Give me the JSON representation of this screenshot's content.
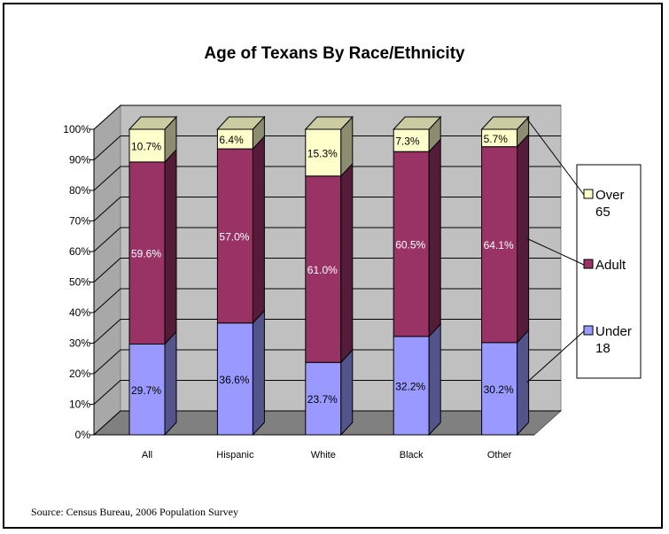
{
  "chart_data": {
    "type": "bar",
    "stacked": true,
    "percent_stacked": true,
    "title": "Age of Texans By Race/Ethnicity",
    "xlabel": "",
    "ylabel": "",
    "ylim": [
      0,
      100
    ],
    "y_ticks": [
      "0%",
      "10%",
      "20%",
      "30%",
      "40%",
      "50%",
      "60%",
      "70%",
      "80%",
      "90%",
      "100%"
    ],
    "categories": [
      "All",
      "Hispanic",
      "White",
      "Black",
      "Other"
    ],
    "series": [
      {
        "name": "Under 18",
        "values": [
          29.7,
          36.6,
          23.7,
          32.2,
          30.2
        ],
        "labels": [
          "29.7%",
          "36.6%",
          "23.7%",
          "32.2%",
          "30.2%"
        ],
        "color": "#9999ff"
      },
      {
        "name": "Adult",
        "values": [
          59.6,
          57.0,
          61.0,
          60.5,
          64.1
        ],
        "labels": [
          "59.6%",
          "57.0%",
          "61.0%",
          "60.5%",
          "64.1%"
        ],
        "color": "#993366"
      },
      {
        "name": "Over 65",
        "values": [
          10.7,
          6.4,
          15.3,
          7.3,
          5.7
        ],
        "labels": [
          "10.7%",
          "6.4%",
          "15.3%",
          "7.3%",
          "5.7%"
        ],
        "color": "#ffffcc"
      }
    ],
    "legend": {
      "position": "right",
      "entries": [
        [
          "Over",
          "65"
        ],
        [
          "Adult"
        ],
        [
          "Under",
          "18"
        ]
      ]
    },
    "grid": true,
    "style": "3d"
  },
  "source_note": "Source: Census Bureau, 2006 Population Survey"
}
